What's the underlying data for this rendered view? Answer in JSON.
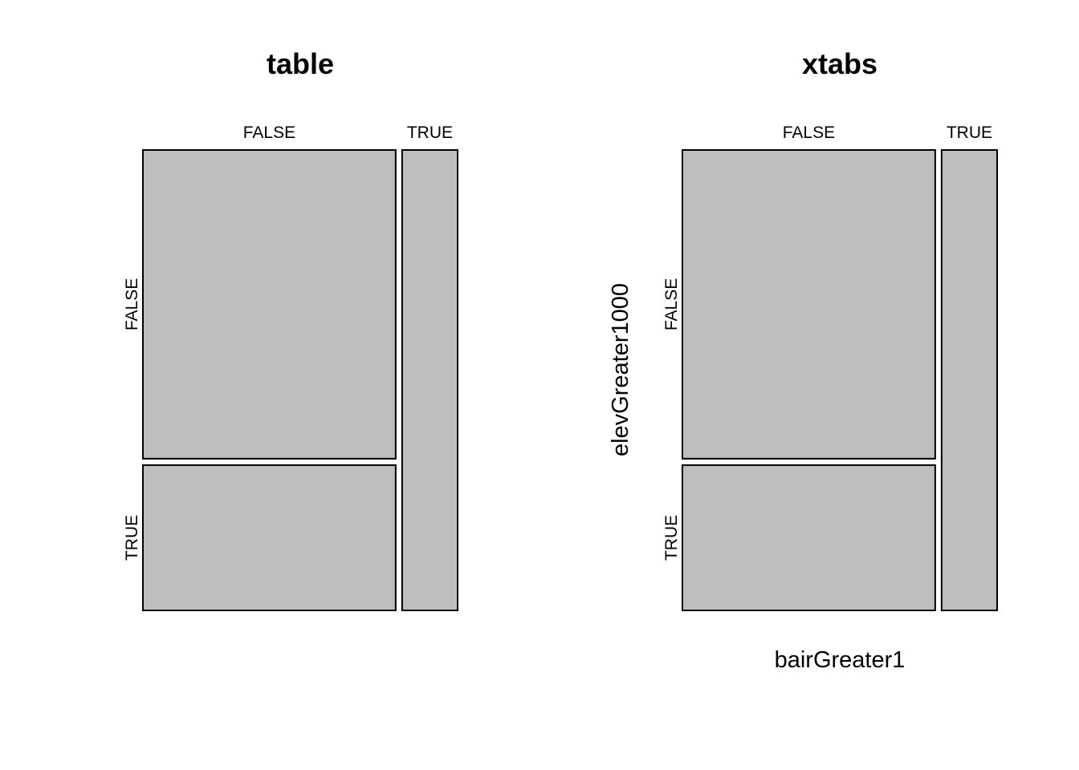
{
  "chart_data": [
    {
      "type": "mosaic",
      "title": "table",
      "xlabel": "",
      "ylabel": "",
      "x_categories": [
        "FALSE",
        "TRUE"
      ],
      "y_categories": [
        "FALSE",
        "TRUE"
      ],
      "column_proportions": [
        0.82,
        0.18
      ],
      "cell_proportions": [
        [
          0.68,
          0.32
        ],
        [
          1.0,
          0.0
        ]
      ],
      "fill_color": "#bebebe"
    },
    {
      "type": "mosaic",
      "title": "xtabs",
      "xlabel": "bairGreater1",
      "ylabel": "elevGreater1000",
      "x_categories": [
        "FALSE",
        "TRUE"
      ],
      "y_categories": [
        "FALSE",
        "TRUE"
      ],
      "column_proportions": [
        0.82,
        0.18
      ],
      "cell_proportions": [
        [
          0.68,
          0.32
        ],
        [
          1.0,
          0.0
        ]
      ],
      "fill_color": "#bebebe"
    }
  ]
}
